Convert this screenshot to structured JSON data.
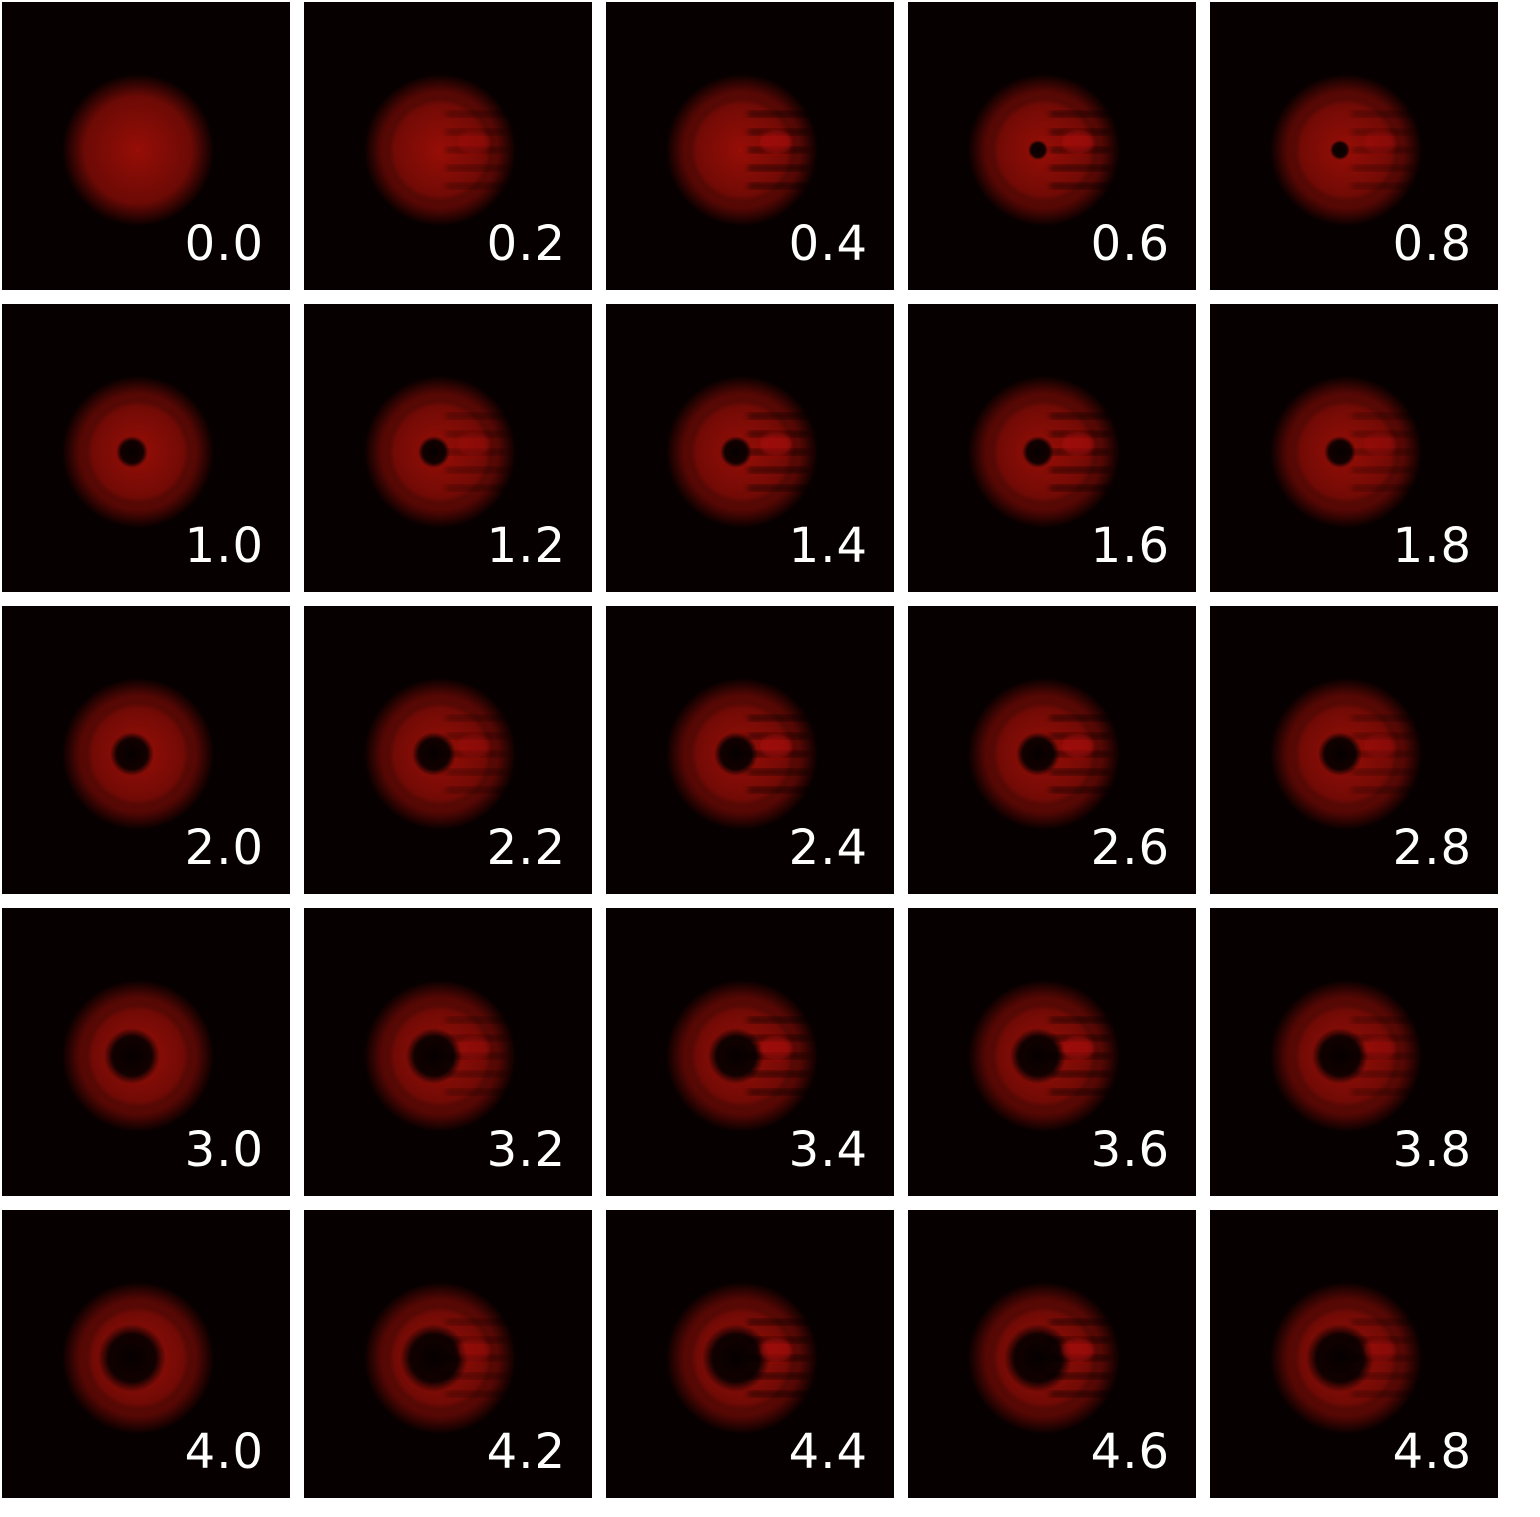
{
  "figure": {
    "background": "#ffffff",
    "tile_background": "#070000",
    "beam_color": "#b01008",
    "label_color": "#ffffff",
    "columns": 5,
    "panels": [
      {
        "label": "0.0",
        "ring": 0.0
      },
      {
        "label": "0.2",
        "ring": 0.2
      },
      {
        "label": "0.4",
        "ring": 0.4
      },
      {
        "label": "0.6",
        "ring": 0.6
      },
      {
        "label": "0.8",
        "ring": 0.8
      },
      {
        "label": "1.0",
        "ring": 1.0
      },
      {
        "label": "1.2",
        "ring": 1.2
      },
      {
        "label": "1.4",
        "ring": 1.4
      },
      {
        "label": "1.6",
        "ring": 1.6
      },
      {
        "label": "1.8",
        "ring": 1.8
      },
      {
        "label": "2.0",
        "ring": 2.0
      },
      {
        "label": "2.2",
        "ring": 2.2
      },
      {
        "label": "2.4",
        "ring": 2.4
      },
      {
        "label": "2.6",
        "ring": 2.6
      },
      {
        "label": "2.8",
        "ring": 2.8
      },
      {
        "label": "3.0",
        "ring": 3.0
      },
      {
        "label": "3.2",
        "ring": 3.2
      },
      {
        "label": "3.4",
        "ring": 3.4
      },
      {
        "label": "3.6",
        "ring": 3.6
      },
      {
        "label": "3.8",
        "ring": 3.8
      },
      {
        "label": "4.0",
        "ring": 4.0
      },
      {
        "label": "4.2",
        "ring": 4.2
      },
      {
        "label": "4.4",
        "ring": 4.4
      },
      {
        "label": "4.6",
        "ring": 4.6
      },
      {
        "label": "4.8",
        "ring": 4.8
      }
    ]
  }
}
